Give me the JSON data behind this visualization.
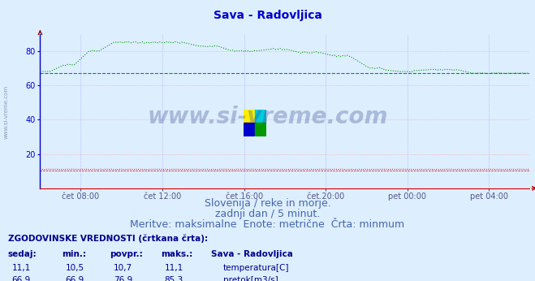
{
  "title": "Sava - Radovljica",
  "title_color": "#0000cc",
  "bg_color": "#ddeeff",
  "plot_bg_color": "#ddeeff",
  "fig_bg_color": "#ddeeff",
  "grid_color": "#ffaaaa",
  "grid_color_v": "#aaaaff",
  "axis_color": "#0000cc",
  "xlabel_color": "#555588",
  "x_labels": [
    "čet 08:00",
    "čet 12:00",
    "čet 16:00",
    "čet 20:00",
    "pet 00:00",
    "pet 04:00"
  ],
  "x_label_fracs": [
    0.083,
    0.25,
    0.417,
    0.583,
    0.75,
    0.917
  ],
  "ylim": [
    0,
    90
  ],
  "yticks": [
    20,
    40,
    60,
    80
  ],
  "temp_color": "#cc0000",
  "pretok_color": "#009900",
  "watermark_text": "www.si-vreme.com",
  "watermark_color": "#334488",
  "watermark_alpha": 0.3,
  "subtitle_lines": [
    "Slovenija / reke in morje.",
    "zadnji dan / 5 minut.",
    "Meritve: maksimalne  Enote: metrične  Črta: minmum"
  ],
  "subtitle_color": "#4466aa",
  "subtitle_fontsize": 9,
  "table_header": "ZGODOVINSKE VREDNOSTI (črtkana črta):",
  "table_cols": [
    "sedaj:",
    "min.:",
    "povpr.:",
    "maks.:"
  ],
  "table_station": "Sava - Radovljica",
  "row1_vals": [
    "11,1",
    "10,5",
    "10,7",
    "11,1"
  ],
  "row1_label": "temperatura[C]",
  "row1_color": "#cc0000",
  "row2_vals": [
    "66,9",
    "66,9",
    "76,9",
    "85,3"
  ],
  "row2_label": "pretok[m3/s]",
  "row2_color": "#009900",
  "table_color": "#000088",
  "n_points": 288,
  "pretok_dashed_level": 66.9,
  "temp_dashed_level": 10.5,
  "logo_colors": [
    "#ffee00",
    "#00ccdd",
    "#0000cc",
    "#009900"
  ],
  "side_watermark": "www.si-vreme.com",
  "side_watermark_color": "#7788aa"
}
